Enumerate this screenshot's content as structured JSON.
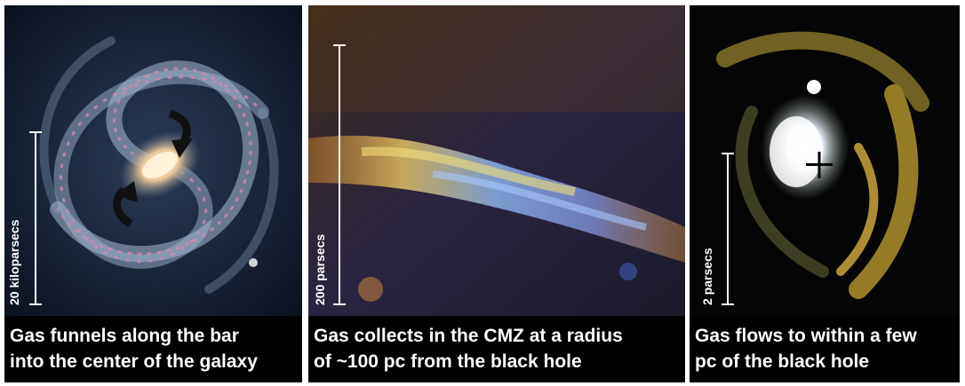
{
  "panels": [
    {
      "scale_label": "20 kiloparsecs",
      "caption_line1": "Gas funnels along the bar",
      "caption_line2": "into the center of the galaxy"
    },
    {
      "scale_label": "200 parsecs",
      "caption_line1": "Gas collects in the CMZ at a radius",
      "caption_line2": "of  ~100 pc from the black hole"
    },
    {
      "scale_label": "2 parsecs",
      "caption_line1": "Gas flows to within a few",
      "caption_line2": "pc of the black hole"
    }
  ],
  "colors": {
    "background": "#ffffff",
    "caption_bg": "#000000",
    "caption_text": "#ffffff"
  },
  "icons": [
    "curved-arrow-icon",
    "curved-arrow-icon",
    "plus-marker-icon"
  ]
}
